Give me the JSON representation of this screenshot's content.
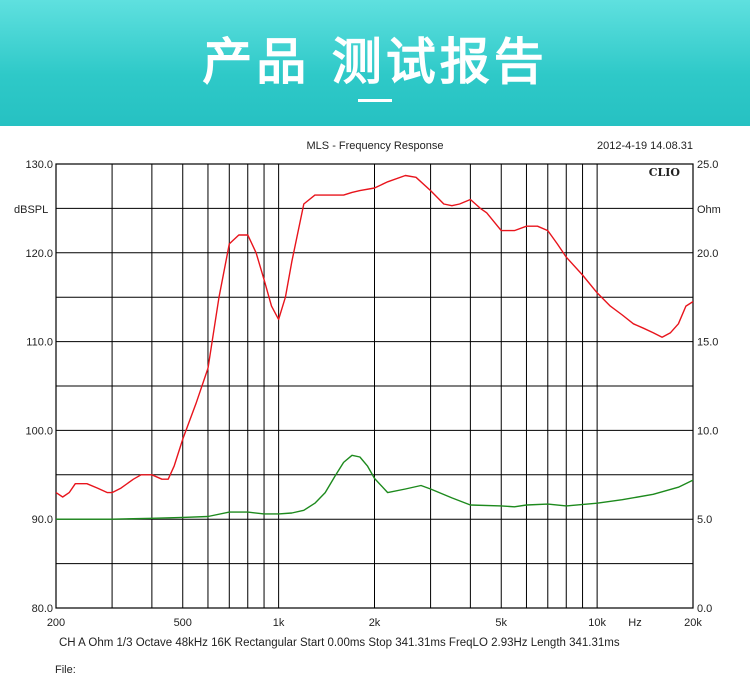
{
  "banner": {
    "title": "产品 测试报告"
  },
  "header": {
    "title": "MLS - Frequency Response",
    "timestamp": "2012-4-19 14.08.31",
    "brand": "CLIO"
  },
  "footer": {
    "settings": "CH A   Ohm   1/3 Octave   48kHz   16K   Rectangular   Start 0.00ms    Stop 341.31ms    FreqLO 2.93Hz    Length 341.31ms",
    "file_label": "File:"
  },
  "colors": {
    "spl": "#e8141c",
    "impedance": "#1d8a1d",
    "grid": "#000000",
    "banner": "#2ec9c8"
  },
  "chart_data": {
    "type": "line",
    "title": "MLS - Frequency Response",
    "xlabel": "Hz",
    "ylabel": "dBSPL",
    "y2label": "Ohm",
    "x_scale": "log",
    "xlim": [
      200,
      20000
    ],
    "ylim": [
      80,
      130
    ],
    "y2lim": [
      0,
      25
    ],
    "grid": true,
    "x_tick_labels": [
      {
        "v": 200,
        "label": "200"
      },
      {
        "v": 500,
        "label": "500"
      },
      {
        "v": 1000,
        "label": "1k"
      },
      {
        "v": 2000,
        "label": "2k"
      },
      {
        "v": 5000,
        "label": "5k"
      },
      {
        "v": 10000,
        "label": "10k"
      },
      {
        "v": 20000,
        "label": "20k"
      }
    ],
    "x_gridlines": [
      200,
      300,
      400,
      500,
      600,
      700,
      800,
      900,
      1000,
      2000,
      3000,
      4000,
      5000,
      6000,
      7000,
      8000,
      9000,
      10000,
      20000
    ],
    "y_tick_labels": [
      {
        "v": 130,
        "label": "130.0"
      },
      {
        "v": 120,
        "label": "120.0"
      },
      {
        "v": 110,
        "label": "110.0"
      },
      {
        "v": 100,
        "label": "100.0"
      },
      {
        "v": 90,
        "label": "90.0"
      },
      {
        "v": 80,
        "label": "80.0"
      }
    ],
    "y2_tick_labels": [
      {
        "v": 25,
        "label": "25.0"
      },
      {
        "v": 20,
        "label": "20.0"
      },
      {
        "v": 15,
        "label": "15.0"
      },
      {
        "v": 10,
        "label": "10.0"
      },
      {
        "v": 5,
        "label": "5.0"
      },
      {
        "v": 0,
        "label": "0.0"
      }
    ],
    "series": [
      {
        "axis": "left",
        "color": "#e8141c",
        "x": [
          200,
          210,
          220,
          230,
          250,
          270,
          290,
          300,
          320,
          350,
          370,
          400,
          430,
          450,
          470,
          500,
          550,
          600,
          650,
          700,
          750,
          800,
          850,
          900,
          950,
          1000,
          1050,
          1100,
          1200,
          1300,
          1400,
          1500,
          1600,
          1700,
          1800,
          2000,
          2200,
          2500,
          2700,
          3000,
          3300,
          3500,
          3700,
          4000,
          4300,
          4500,
          5000,
          5500,
          6000,
          6500,
          7000,
          7500,
          8000,
          9000,
          10000,
          11000,
          12000,
          13000,
          14000,
          15000,
          16000,
          17000,
          18000,
          19000,
          20000
        ],
        "values": [
          93,
          92.5,
          93,
          94,
          94,
          93.5,
          93,
          93,
          93.5,
          94.5,
          95,
          95,
          94.5,
          94.5,
          96,
          99,
          103,
          107,
          115,
          121,
          122,
          122,
          120,
          117,
          114,
          112.5,
          115,
          119,
          125.5,
          126.5,
          126.5,
          126.5,
          126.5,
          126.8,
          127,
          127.3,
          128,
          128.7,
          128.5,
          127,
          125.5,
          125.3,
          125.5,
          126,
          125,
          124.5,
          122.5,
          122.5,
          123,
          123,
          122.5,
          121,
          119.5,
          117.5,
          115.5,
          114,
          113,
          112,
          111.5,
          111,
          110.5,
          111,
          112,
          114,
          114.5
        ]
      },
      {
        "axis": "right",
        "color": "#1d8a1d",
        "x": [
          200,
          300,
          400,
          500,
          600,
          700,
          800,
          900,
          1000,
          1100,
          1200,
          1300,
          1400,
          1500,
          1600,
          1700,
          1800,
          1900,
          2000,
          2200,
          2500,
          2800,
          3000,
          3500,
          4000,
          5000,
          5500,
          6000,
          7000,
          8000,
          10000,
          12000,
          15000,
          18000,
          20000
        ],
        "values": [
          5,
          5,
          5.05,
          5.1,
          5.15,
          5.4,
          5.4,
          5.3,
          5.3,
          5.35,
          5.5,
          5.9,
          6.5,
          7.4,
          8.2,
          8.6,
          8.5,
          8,
          7.3,
          6.5,
          6.7,
          6.9,
          6.7,
          6.2,
          5.8,
          5.75,
          5.7,
          5.8,
          5.85,
          5.75,
          5.9,
          6.1,
          6.4,
          6.8,
          7.2
        ]
      }
    ]
  }
}
